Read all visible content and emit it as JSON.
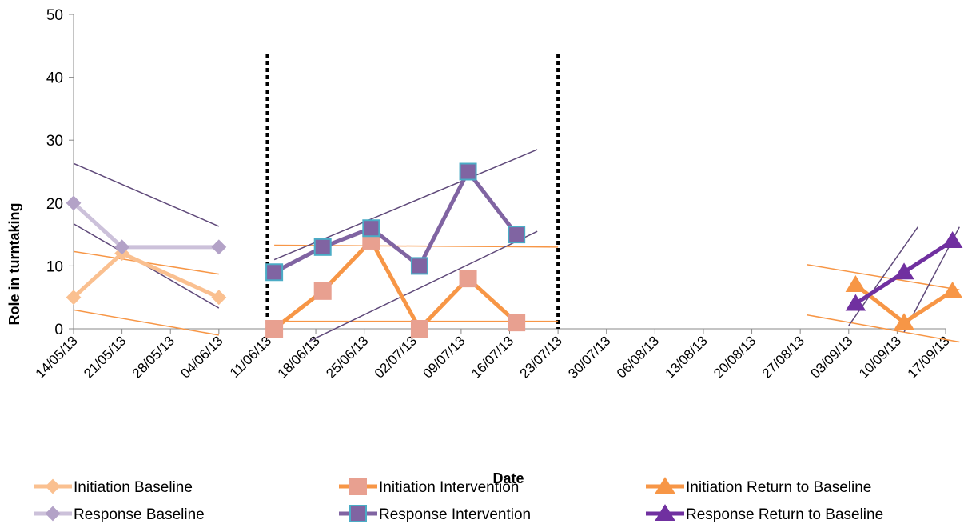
{
  "chart_data": {
    "type": "line",
    "title": "",
    "xlabel": "Date",
    "ylabel": "Role in turntaking",
    "ylim": [
      0,
      50
    ],
    "yticks": [
      "0",
      "10",
      "20",
      "30",
      "40",
      "50"
    ],
    "x_ticks": [
      "14/05/13",
      "21/05/13",
      "28/05/13",
      "04/06/13",
      "11/06/13",
      "18/06/13",
      "25/06/13",
      "02/07/13",
      "09/07/13",
      "16/07/13",
      "23/07/13",
      "30/07/13",
      "06/08/13",
      "13/08/13",
      "20/08/13",
      "27/08/13",
      "03/09/13",
      "10/09/13",
      "17/09/13"
    ],
    "x_range": [
      "14/05/13",
      "17/09/13"
    ],
    "phase_lines": [
      "11/06/13",
      "23/07/13"
    ],
    "legend_placement": "bottom",
    "series": [
      {
        "name": "Initiation Baseline",
        "color": "#FAC090",
        "marker": "diamond",
        "points": [
          [
            "14/05/13",
            5
          ],
          [
            "21/05/13",
            12
          ],
          [
            "04/06/13",
            5
          ]
        ]
      },
      {
        "name": "Initiation Intervention",
        "color": "#F79646",
        "marker": "square",
        "marker_fill": "#E8A090",
        "points": [
          [
            "12/06/13",
            0
          ],
          [
            "19/06/13",
            6
          ],
          [
            "26/06/13",
            14
          ],
          [
            "03/07/13",
            0
          ],
          [
            "10/07/13",
            8
          ],
          [
            "17/07/13",
            1
          ]
        ]
      },
      {
        "name": "Initiation Return to Baseline",
        "color": "#F79646",
        "marker": "triangle",
        "points": [
          [
            "04/09/13",
            7
          ],
          [
            "11/09/13",
            1
          ],
          [
            "18/09/13",
            6
          ]
        ]
      },
      {
        "name": "Response Baseline",
        "color": "#CCC1DA",
        "marker": "diamond",
        "marker_fill": "#B3A2C7",
        "points": [
          [
            "14/05/13",
            20
          ],
          [
            "21/05/13",
            13
          ],
          [
            "04/06/13",
            13
          ]
        ]
      },
      {
        "name": "Response Intervention",
        "color": "#8064A2",
        "marker": "square",
        "marker_fill": "#8064A2",
        "marker_stroke": "#4BACC6",
        "points": [
          [
            "12/06/13",
            9
          ],
          [
            "19/06/13",
            13
          ],
          [
            "26/06/13",
            16
          ],
          [
            "03/07/13",
            10
          ],
          [
            "10/07/13",
            25
          ],
          [
            "17/07/13",
            15
          ]
        ]
      },
      {
        "name": "Response Return to Baseline",
        "color": "#7030A0",
        "marker": "triangle",
        "points": [
          [
            "04/09/13",
            4
          ],
          [
            "11/09/13",
            9
          ],
          [
            "18/09/13",
            14
          ]
        ]
      }
    ],
    "trend_lines": [
      {
        "color": "#F79646",
        "points": [
          [
            "14/05/13",
            12.3
          ],
          [
            "04/06/13",
            8.7
          ]
        ]
      },
      {
        "color": "#F79646",
        "points": [
          [
            "14/05/13",
            3
          ],
          [
            "04/06/13",
            -1
          ]
        ]
      },
      {
        "color": "#5F497A",
        "points": [
          [
            "14/05/13",
            26.3
          ],
          [
            "04/06/13",
            16.3
          ]
        ]
      },
      {
        "color": "#5F497A",
        "points": [
          [
            "14/05/13",
            16.7
          ],
          [
            "04/06/13",
            3.3
          ]
        ]
      },
      {
        "color": "#F79646",
        "points": [
          [
            "12/06/13",
            13.3
          ],
          [
            "23/07/13",
            13
          ]
        ]
      },
      {
        "color": "#F79646",
        "points": [
          [
            "12/06/13",
            1.2
          ],
          [
            "23/07/13",
            1.2
          ]
        ]
      },
      {
        "color": "#5F497A",
        "points": [
          [
            "12/06/13",
            11
          ],
          [
            "20/07/13",
            28.5
          ]
        ]
      },
      {
        "color": "#5F497A",
        "points": [
          [
            "17/06/13",
            -2
          ],
          [
            "20/07/13",
            15.5
          ]
        ]
      },
      {
        "color": "#F79646",
        "points": [
          [
            "28/08/13",
            10.2
          ],
          [
            "19/09/13",
            6.2
          ]
        ]
      },
      {
        "color": "#F79646",
        "points": [
          [
            "28/08/13",
            2.2
          ],
          [
            "19/09/13",
            -2.1
          ]
        ]
      },
      {
        "color": "#5F497A",
        "points": [
          [
            "03/09/13",
            0.5
          ],
          [
            "13/09/13",
            16.2
          ]
        ]
      },
      {
        "color": "#5F497A",
        "points": [
          [
            "11/09/13",
            -0.5
          ],
          [
            "19/09/13",
            16.2
          ]
        ]
      }
    ]
  }
}
